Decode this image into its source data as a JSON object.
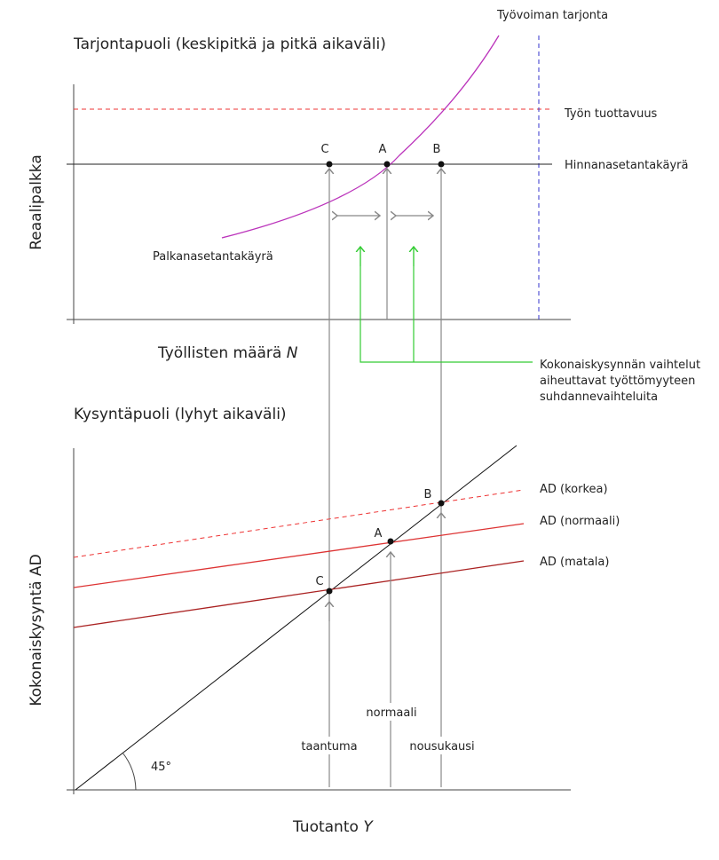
{
  "supply": {
    "title": "Tarjontapuoli (keskipitkä ja pitkä aikaväli)",
    "y_label": "Reaalipalkka",
    "x_label": "Työllisten määrä ",
    "x_label_var": "N",
    "labor_supply": "Työvoiman tarjonta",
    "productivity": "Työn tuottavuus",
    "price_setting": "Hinnanasetantakäyrä",
    "wage_setting": "Palkanasetantakäyrä",
    "points": [
      "C",
      "A",
      "B"
    ],
    "annotation": [
      "Kokonaiskysynnän vaihtelut",
      "aiheuttavat työttömyyteen",
      "suhdannevaihteluita"
    ]
  },
  "demand": {
    "title": "Kysyntäpuoli (lyhyt aikaväli)",
    "y_label": "Kokonaiskysyntä AD",
    "x_label": "Tuotanto ",
    "x_label_var": "Y",
    "ad_high": "AD (korkea)",
    "ad_normal": "AD (normaali)",
    "ad_low": "AD (matala)",
    "points": [
      "B",
      "A",
      "C"
    ],
    "angle": "45°",
    "normal": "normaali",
    "recession": "taantuma",
    "boom": "nousukausi"
  }
}
